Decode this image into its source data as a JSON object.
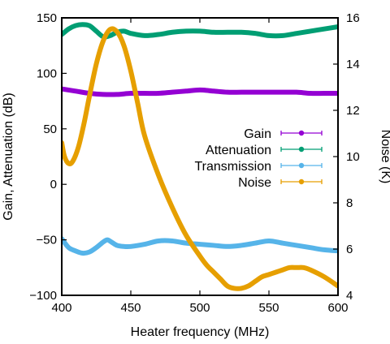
{
  "chart_data": {
    "type": "line",
    "title": "",
    "xlabel": "Heater frequency (MHz)",
    "ylabel": "Gain, Attenuation (dB)",
    "y2label": "Noise (K)",
    "xlim": [
      400,
      600
    ],
    "ylim": [
      -100,
      150
    ],
    "y2lim": [
      4,
      16
    ],
    "xticks": [
      400,
      450,
      500,
      550,
      600
    ],
    "yticks": [
      -100,
      -50,
      0,
      50,
      100,
      150
    ],
    "y2ticks": [
      4,
      6,
      8,
      10,
      12,
      14,
      16
    ],
    "xtick_labels": [
      "400",
      "450",
      "500",
      "550",
      "600"
    ],
    "ytick_labels": [
      "−100",
      "−50",
      "0",
      "50",
      "100",
      "150"
    ],
    "y2tick_labels": [
      "4",
      "6",
      "8",
      "10",
      "12",
      "14",
      "16"
    ],
    "grid": false,
    "legend_position": "right-middle",
    "series": [
      {
        "name": "Gain",
        "axis": "left",
        "color": "#9400d3",
        "x": [
          400,
          410,
          420,
          430,
          440,
          450,
          460,
          470,
          480,
          490,
          500,
          510,
          520,
          530,
          540,
          550,
          560,
          570,
          580,
          590,
          600
        ],
        "y": [
          86,
          84,
          82,
          81,
          81,
          82,
          82,
          82,
          83,
          84,
          85,
          84,
          83,
          83,
          83,
          83,
          83,
          83,
          82,
          82,
          82
        ]
      },
      {
        "name": "Attenuation",
        "axis": "left",
        "color": "#009e73",
        "x": [
          400,
          405,
          410,
          415,
          420,
          425,
          430,
          435,
          440,
          445,
          450,
          460,
          470,
          480,
          490,
          500,
          510,
          520,
          530,
          540,
          550,
          560,
          570,
          580,
          590,
          600
        ],
        "y": [
          135,
          140,
          143,
          144,
          143,
          138,
          133,
          134,
          137,
          138,
          136,
          134,
          135,
          137,
          138,
          138,
          137,
          137,
          137,
          136,
          134,
          134,
          136,
          138,
          140,
          142
        ]
      },
      {
        "name": "Transmission",
        "axis": "left",
        "color": "#56b4e9",
        "x": [
          400,
          405,
          410,
          415,
          420,
          425,
          430,
          433,
          436,
          440,
          445,
          450,
          460,
          470,
          480,
          490,
          500,
          510,
          520,
          530,
          540,
          550,
          560,
          570,
          580,
          590,
          600
        ],
        "y": [
          -49,
          -57,
          -60,
          -62,
          -61,
          -57,
          -52,
          -50,
          -52,
          -55,
          -56,
          -56,
          -54,
          -51,
          -51,
          -53,
          -54,
          -55,
          -56,
          -55,
          -53,
          -51,
          -53,
          -55,
          -57,
          -59,
          -60
        ]
      },
      {
        "name": "Noise",
        "axis": "right",
        "color": "#e69f00",
        "x": [
          400,
          402,
          405,
          408,
          412,
          416,
          420,
          425,
          430,
          435,
          440,
          445,
          450,
          455,
          460,
          470,
          480,
          490,
          500,
          505,
          510,
          515,
          520,
          525,
          530,
          535,
          540,
          545,
          550,
          555,
          560,
          565,
          570,
          575,
          580,
          590,
          600
        ],
        "y": [
          10.6,
          10.0,
          9.7,
          9.8,
          10.4,
          11.4,
          12.6,
          14.0,
          15.0,
          15.5,
          15.4,
          14.8,
          13.7,
          12.3,
          10.9,
          9.2,
          7.8,
          6.6,
          5.7,
          5.3,
          5.0,
          4.7,
          4.4,
          4.3,
          4.3,
          4.4,
          4.6,
          4.8,
          4.9,
          5.0,
          5.1,
          5.2,
          5.2,
          5.2,
          5.1,
          4.8,
          4.4
        ]
      }
    ]
  }
}
